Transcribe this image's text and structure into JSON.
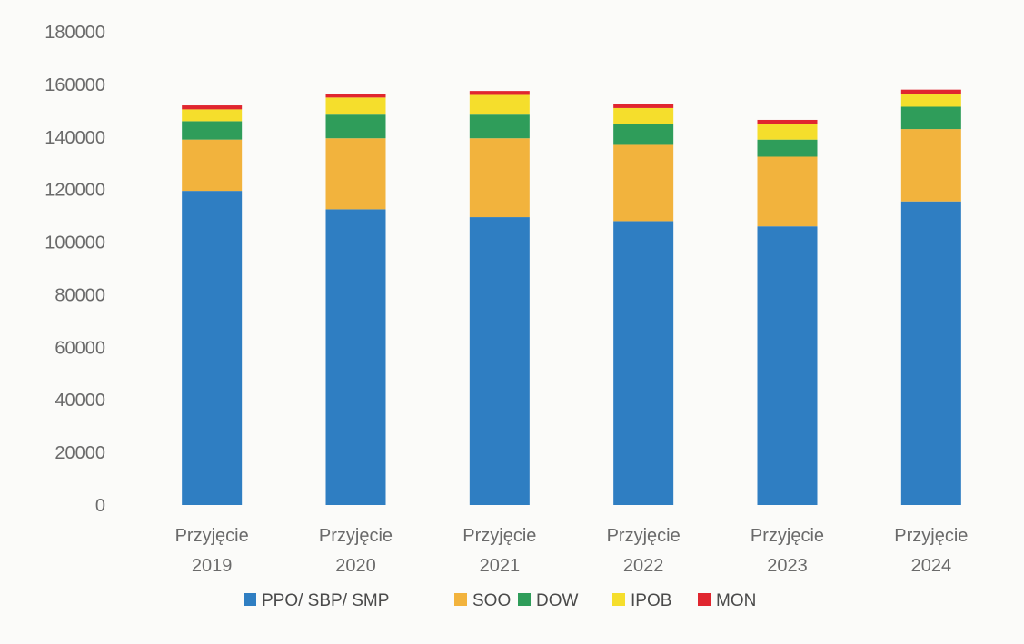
{
  "chart_data": {
    "type": "bar",
    "stacked": true,
    "title": "",
    "xlabel": "",
    "ylabel": "",
    "ylim": [
      0,
      180000
    ],
    "yticks": [
      0,
      20000,
      40000,
      60000,
      80000,
      100000,
      120000,
      140000,
      160000,
      180000
    ],
    "grid": false,
    "legend_position": "bottom",
    "categories": [
      [
        "Przyjęcie",
        "2019"
      ],
      [
        "Przyjęcie",
        "2020"
      ],
      [
        "Przyjęcie",
        "2021"
      ],
      [
        "Przyjęcie",
        "2022"
      ],
      [
        "Przyjęcie",
        "2023"
      ],
      [
        "Przyjęcie",
        "2024"
      ]
    ],
    "series": [
      {
        "name": "PPO/ SBP/ SMP",
        "color": "#2f7ec2",
        "values": [
          119500,
          112500,
          109500,
          108000,
          106000,
          115500
        ]
      },
      {
        "name": "SOO",
        "color": "#f2b33d",
        "values": [
          19500,
          27000,
          30000,
          29000,
          26500,
          27500
        ]
      },
      {
        "name": "DOW",
        "color": "#2f9d5a",
        "values": [
          7000,
          9000,
          9000,
          8000,
          6500,
          8500
        ]
      },
      {
        "name": "IPOB",
        "color": "#f5de2c",
        "values": [
          4500,
          6500,
          7500,
          6000,
          6000,
          5000
        ]
      },
      {
        "name": "MON",
        "color": "#e0262f",
        "values": [
          1500,
          1500,
          1500,
          1500,
          1500,
          1500
        ]
      }
    ]
  }
}
